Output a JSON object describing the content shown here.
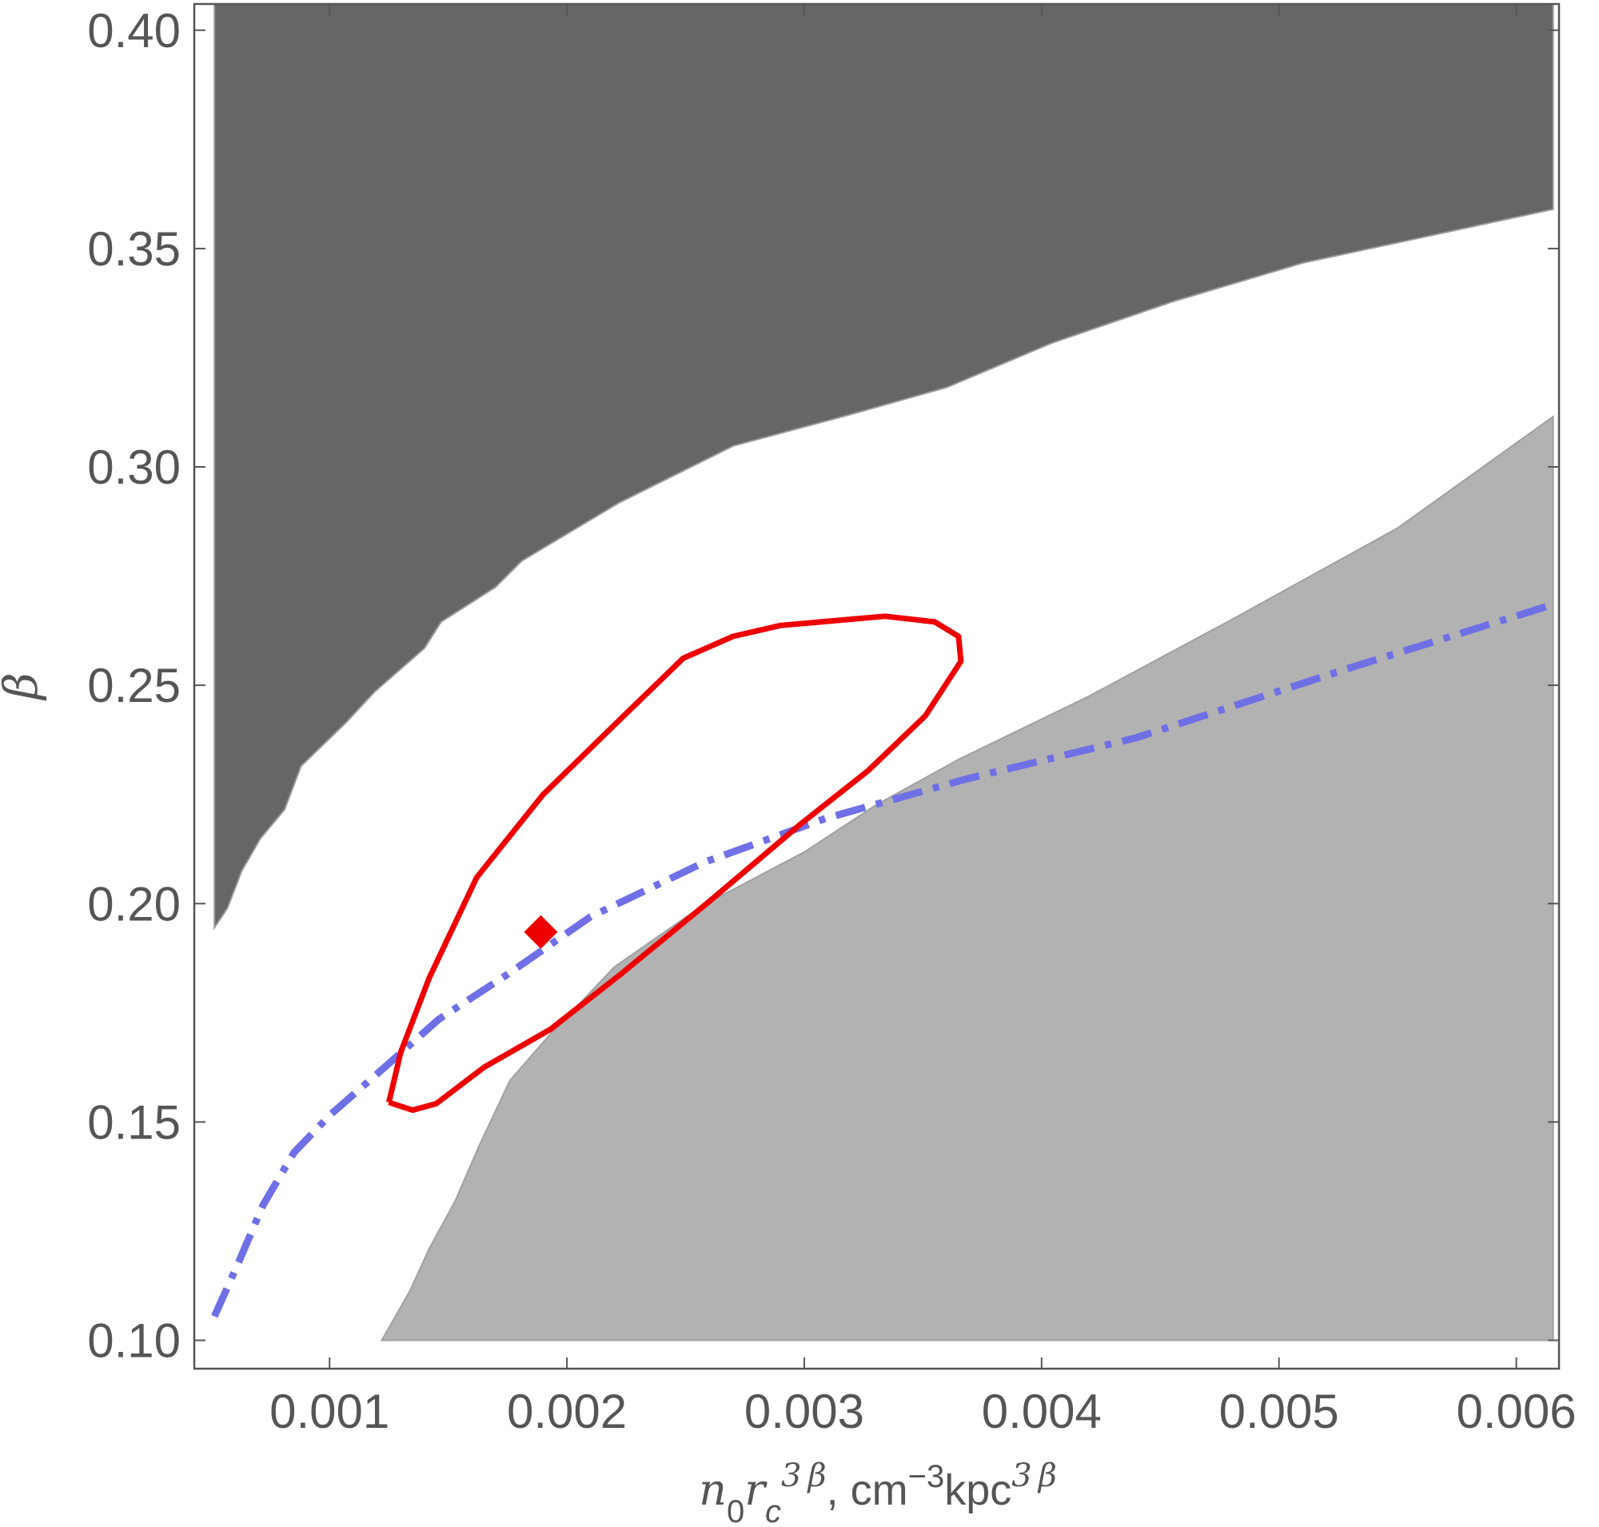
{
  "chart_data": {
    "type": "contour-region",
    "xlabel": {
      "n": "n",
      "n_sub": "0",
      "r": "r",
      "r_sub": "c",
      "r_sup": "3 β",
      "sep": ", cm",
      "cm_sup": "−3",
      "kpc": "kpc",
      "kpc_sup": "3 β"
    },
    "ylabel": "β",
    "xlim": [
      0.00043,
      0.00618
    ],
    "ylim": [
      0.0935,
      0.406
    ],
    "xticks": [
      {
        "value": 0.001,
        "label": "0.001"
      },
      {
        "value": 0.002,
        "label": "0.002"
      },
      {
        "value": 0.003,
        "label": "0.003"
      },
      {
        "value": 0.004,
        "label": "0.004"
      },
      {
        "value": 0.005,
        "label": "0.005"
      },
      {
        "value": 0.006,
        "label": "0.006"
      }
    ],
    "yticks": [
      {
        "value": 0.1,
        "label": "0.10"
      },
      {
        "value": 0.15,
        "label": "0.15"
      },
      {
        "value": 0.2,
        "label": "0.20"
      },
      {
        "value": 0.25,
        "label": "0.25"
      },
      {
        "value": 0.3,
        "label": "0.30"
      },
      {
        "value": 0.35,
        "label": "0.35"
      },
      {
        "value": 0.4,
        "label": "0.40"
      }
    ],
    "colors": {
      "upper_region": "#666666",
      "lower_region": "#b2b2b2",
      "contour": "#ee0000",
      "best_fit": "#ee0000",
      "dashdot_curve": "#6f6fe6",
      "frame": "#555555"
    },
    "upper_region_boundary": [
      [
        0.000515,
        0.1945
      ],
      [
        0.00057,
        0.199
      ],
      [
        0.00063,
        0.2075
      ],
      [
        0.00071,
        0.215
      ],
      [
        0.00081,
        0.2215
      ],
      [
        0.00088,
        0.2315
      ],
      [
        0.00107,
        0.2415
      ],
      [
        0.00119,
        0.2485
      ],
      [
        0.0014,
        0.2585
      ],
      [
        0.00147,
        0.2645
      ],
      [
        0.0017,
        0.2725
      ],
      [
        0.00181,
        0.2785
      ],
      [
        0.00222,
        0.2918
      ],
      [
        0.0027,
        0.3048
      ],
      [
        0.00318,
        0.3118
      ],
      [
        0.0036,
        0.3182
      ],
      [
        0.00404,
        0.3283
      ],
      [
        0.00455,
        0.3378
      ],
      [
        0.0051,
        0.3467
      ],
      [
        0.0056,
        0.3525
      ],
      [
        0.006155,
        0.359
      ]
    ],
    "lower_region_boundary": [
      [
        0.00122,
        0.1
      ],
      [
        0.00134,
        0.1115
      ],
      [
        0.00142,
        0.121
      ],
      [
        0.00153,
        0.132
      ],
      [
        0.00163,
        0.1445
      ],
      [
        0.00176,
        0.1595
      ],
      [
        0.00192,
        0.1695
      ],
      [
        0.0022,
        0.1855
      ],
      [
        0.00257,
        0.1995
      ],
      [
        0.003,
        0.2118
      ],
      [
        0.0033,
        0.2225
      ],
      [
        0.00365,
        0.233
      ],
      [
        0.0042,
        0.2475
      ],
      [
        0.0048,
        0.265
      ],
      [
        0.0055,
        0.286
      ],
      [
        0.006155,
        0.3115
      ]
    ],
    "confidence_contour": [
      [
        0.00125,
        0.1545
      ],
      [
        0.00135,
        0.1527
      ],
      [
        0.00145,
        0.1542
      ],
      [
        0.00165,
        0.1625
      ],
      [
        0.00193,
        0.1712
      ],
      [
        0.00223,
        0.184
      ],
      [
        0.0026,
        0.2005
      ],
      [
        0.00298,
        0.218
      ],
      [
        0.00327,
        0.2305
      ],
      [
        0.00351,
        0.243
      ],
      [
        0.00366,
        0.2555
      ],
      [
        0.00365,
        0.2612
      ],
      [
        0.00355,
        0.2645
      ],
      [
        0.00334,
        0.2658
      ],
      [
        0.0029,
        0.2637
      ],
      [
        0.0027,
        0.2612
      ],
      [
        0.00249,
        0.2562
      ],
      [
        0.00223,
        0.2425
      ],
      [
        0.0019,
        0.225
      ],
      [
        0.00162,
        0.206
      ],
      [
        0.00142,
        0.183
      ],
      [
        0.0013,
        0.166
      ],
      [
        0.00125,
        0.1545
      ]
    ],
    "best_fit_point": [
      0.00189,
      0.1935
    ],
    "dashdot_curve": [
      [
        0.000515,
        0.1055
      ],
      [
        0.00061,
        0.117
      ],
      [
        0.00072,
        0.131
      ],
      [
        0.00085,
        0.143
      ],
      [
        0.001,
        0.1515
      ],
      [
        0.0012,
        0.161
      ],
      [
        0.00146,
        0.1735
      ],
      [
        0.00175,
        0.1838
      ],
      [
        0.0021,
        0.197
      ],
      [
        0.00258,
        0.2095
      ],
      [
        0.00309,
        0.2195
      ],
      [
        0.00368,
        0.2285
      ],
      [
        0.0044,
        0.238
      ],
      [
        0.0053,
        0.254
      ],
      [
        0.006155,
        0.2685
      ]
    ]
  }
}
